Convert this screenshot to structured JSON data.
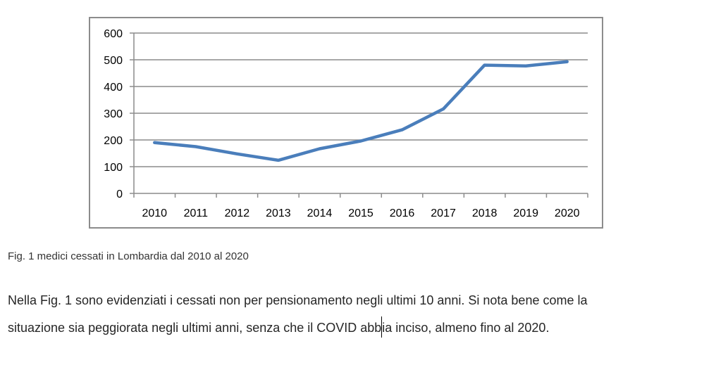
{
  "chart_data": {
    "type": "line",
    "categories": [
      "2010",
      "2011",
      "2012",
      "2013",
      "2014",
      "2015",
      "2016",
      "2017",
      "2018",
      "2019",
      "2020"
    ],
    "series": [
      {
        "values": [
          190,
          175,
          148,
          124,
          167,
          196,
          238,
          316,
          480,
          477,
          493
        ]
      }
    ],
    "ylim": [
      0,
      600
    ],
    "yticks": [
      "0",
      "100",
      "200",
      "300",
      "400",
      "500",
      "600"
    ],
    "grid": true,
    "legend": "none",
    "line_color": "#4a7ebb",
    "grid_color": "#8c8c8c"
  },
  "caption": "Fig. 1 medici cessati in Lombardia dal 2010 al 2020",
  "paragraph": {
    "line1": "Nella Fig. 1 sono evidenziati i cessati non per pensionamento negli ultimi 10 anni. Si nota bene come la",
    "line2_before_cursor": "situazione sia peggiorata negli ultimi anni, senza che il COVID abb",
    "line2_after_cursor": "ia inciso, almeno fino al 2020."
  }
}
